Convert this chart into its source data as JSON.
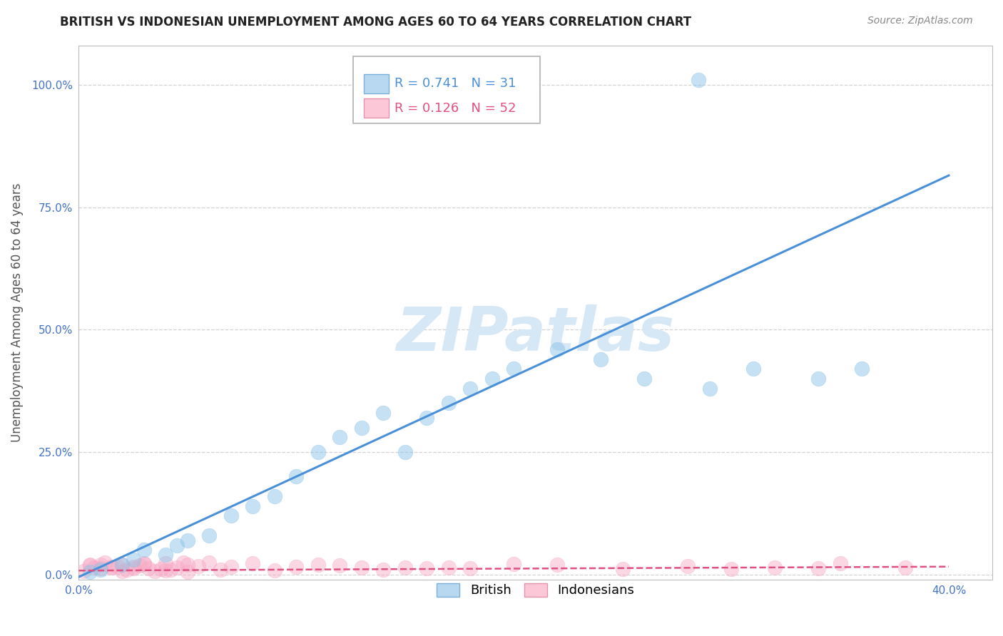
{
  "title": "BRITISH VS INDONESIAN UNEMPLOYMENT AMONG AGES 60 TO 64 YEARS CORRELATION CHART",
  "source": "Source: ZipAtlas.com",
  "ylabel": "Unemployment Among Ages 60 to 64 years",
  "xlim": [
    0.0,
    0.42
  ],
  "ylim": [
    -0.01,
    1.08
  ],
  "xtick_positions": [
    0.0,
    0.05,
    0.1,
    0.15,
    0.2,
    0.25,
    0.3,
    0.35,
    0.4
  ],
  "ytick_positions": [
    0.0,
    0.25,
    0.5,
    0.75,
    1.0
  ],
  "british_R": 0.741,
  "british_N": 31,
  "indonesian_R": 0.126,
  "indonesian_N": 52,
  "british_scatter_color": "#8ec4e8",
  "british_line_color": "#4a90d9",
  "indonesian_scatter_color": "#f7a8c4",
  "indonesian_line_color": "#e05080",
  "watermark": "ZIPatlas",
  "watermark_color": "#d6e8f5",
  "background_color": "#ffffff",
  "grid_color": "#cccccc",
  "tick_color": "#4472c4",
  "title_color": "#222222",
  "source_color": "#888888",
  "ylabel_color": "#555555",
  "title_fontsize": 12,
  "tick_fontsize": 11,
  "legend_fontsize": 13,
  "brit_x": [
    0.005,
    0.01,
    0.02,
    0.025,
    0.03,
    0.04,
    0.045,
    0.05,
    0.06,
    0.07,
    0.08,
    0.09,
    0.1,
    0.11,
    0.12,
    0.13,
    0.14,
    0.15,
    0.16,
    0.17,
    0.18,
    0.19,
    0.2,
    0.22,
    0.24,
    0.26,
    0.29,
    0.31,
    0.34,
    0.36,
    0.285
  ],
  "brit_y": [
    0.005,
    0.01,
    0.02,
    0.03,
    0.05,
    0.04,
    0.06,
    0.07,
    0.08,
    0.12,
    0.14,
    0.16,
    0.2,
    0.25,
    0.28,
    0.3,
    0.33,
    0.25,
    0.32,
    0.35,
    0.38,
    0.4,
    0.42,
    0.46,
    0.44,
    0.4,
    0.38,
    0.42,
    0.4,
    0.42,
    1.01
  ],
  "indon_x": [
    0.002,
    0.005,
    0.007,
    0.01,
    0.012,
    0.015,
    0.018,
    0.02,
    0.022,
    0.025,
    0.028,
    0.03,
    0.032,
    0.035,
    0.038,
    0.04,
    0.042,
    0.045,
    0.048,
    0.05,
    0.055,
    0.06,
    0.065,
    0.07,
    0.08,
    0.09,
    0.1,
    0.11,
    0.12,
    0.13,
    0.14,
    0.15,
    0.16,
    0.17,
    0.18,
    0.2,
    0.22,
    0.25,
    0.28,
    0.3,
    0.32,
    0.34,
    0.005,
    0.01,
    0.015,
    0.02,
    0.025,
    0.03,
    0.04,
    0.05,
    0.35,
    0.38
  ],
  "indon_y": [
    0.005,
    0.005,
    0.005,
    0.005,
    0.005,
    0.005,
    0.005,
    0.005,
    0.005,
    0.005,
    0.005,
    0.005,
    0.005,
    0.005,
    0.005,
    0.005,
    0.005,
    0.005,
    0.005,
    0.005,
    0.005,
    0.005,
    0.005,
    0.005,
    0.005,
    0.005,
    0.005,
    0.005,
    0.005,
    0.005,
    0.005,
    0.005,
    0.005,
    0.005,
    0.005,
    0.005,
    0.005,
    0.005,
    0.005,
    0.005,
    0.005,
    0.005,
    0.005,
    0.005,
    0.005,
    0.005,
    0.005,
    0.005,
    0.005,
    0.005,
    0.015,
    0.005
  ]
}
